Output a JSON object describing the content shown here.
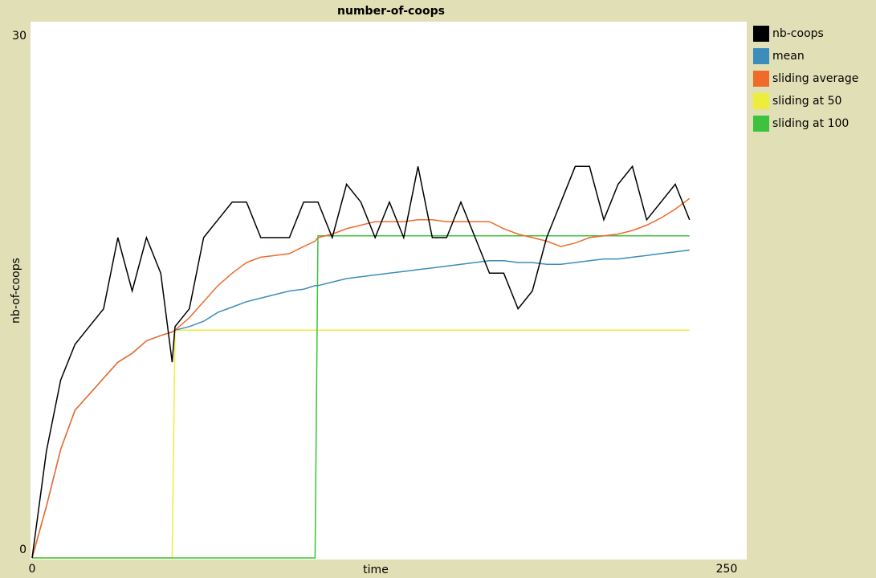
{
  "chart_data": {
    "type": "line",
    "title": "number-of-coops",
    "x_label": "time",
    "y_label": "nb-of-coops",
    "xlim": [
      0,
      250
    ],
    "ylim": [
      0,
      30
    ],
    "xticks": [
      0,
      250
    ],
    "yticks": [
      0,
      30
    ],
    "grid": false,
    "legend": "outside-right",
    "x": [
      0,
      5,
      10,
      15,
      20,
      25,
      30,
      35,
      40,
      45,
      49,
      50,
      55,
      60,
      65,
      70,
      75,
      80,
      85,
      90,
      95,
      99,
      100,
      105,
      110,
      115,
      120,
      125,
      130,
      135,
      140,
      145,
      150,
      155,
      160,
      165,
      170,
      175,
      180,
      185,
      190,
      195,
      200,
      205,
      210,
      215,
      220,
      225,
      230
    ],
    "series": [
      {
        "name": "nb-coops",
        "color": "#000000",
        "values": [
          0,
          6,
          10,
          12,
          13,
          14,
          18,
          15,
          18,
          16,
          11,
          13,
          14,
          18,
          19,
          20,
          20,
          18,
          18,
          18,
          20,
          20,
          20,
          18,
          21,
          20,
          18,
          20,
          18,
          22,
          18,
          18,
          20,
          18,
          16,
          16,
          14,
          15,
          18,
          20,
          22,
          22,
          19,
          21,
          22,
          19,
          20,
          21,
          19
        ]
      },
      {
        "name": "mean",
        "color": "#3c8dbc",
        "values": [
          0,
          2.9,
          6.1,
          8.3,
          9.2,
          10.1,
          11,
          11.5,
          12.2,
          12.5,
          12.7,
          12.8,
          13.0,
          13.3,
          13.8,
          14.1,
          14.4,
          14.6,
          14.8,
          15,
          15.1,
          15.3,
          15.3,
          15.5,
          15.7,
          15.8,
          15.9,
          16.0,
          16.1,
          16.2,
          16.3,
          16.4,
          16.5,
          16.6,
          16.7,
          16.7,
          16.6,
          16.6,
          16.5,
          16.5,
          16.6,
          16.7,
          16.8,
          16.8,
          16.9,
          17.0,
          17.1,
          17.2,
          17.3
        ]
      },
      {
        "name": "sliding average",
        "color": "#f06a2a",
        "values": [
          0,
          2.9,
          6.1,
          8.3,
          9.2,
          10.1,
          11,
          11.5,
          12.2,
          12.5,
          12.7,
          12.8,
          13.5,
          14.4,
          15.3,
          16,
          16.6,
          16.9,
          17,
          17.1,
          17.5,
          17.8,
          18,
          18.2,
          18.5,
          18.7,
          18.9,
          18.9,
          18.9,
          19,
          19,
          18.9,
          18.9,
          18.9,
          18.9,
          18.5,
          18.2,
          18,
          17.8,
          17.5,
          17.7,
          18,
          18.1,
          18.2,
          18.4,
          18.7,
          19.1,
          19.6,
          20.2
        ]
      },
      {
        "name": "sliding at 50",
        "color": "#eeee3a",
        "values": [
          0,
          0,
          0,
          0,
          0,
          0,
          0,
          0,
          0,
          0,
          0,
          12.8,
          12.8,
          12.8,
          12.8,
          12.8,
          12.8,
          12.8,
          12.8,
          12.8,
          12.8,
          12.8,
          12.8,
          12.8,
          12.8,
          12.8,
          12.8,
          12.8,
          12.8,
          12.8,
          12.8,
          12.8,
          12.8,
          12.8,
          12.8,
          12.8,
          12.8,
          12.8,
          12.8,
          12.8,
          12.8,
          12.8,
          12.8,
          12.8,
          12.8,
          12.8,
          12.8,
          12.8,
          12.8
        ]
      },
      {
        "name": "sliding at 100",
        "color": "#3cc23c",
        "values": [
          0,
          0,
          0,
          0,
          0,
          0,
          0,
          0,
          0,
          0,
          0,
          0,
          0,
          0,
          0,
          0,
          0,
          0,
          0,
          0,
          0,
          0,
          18.1,
          18.1,
          18.1,
          18.1,
          18.1,
          18.1,
          18.1,
          18.1,
          18.1,
          18.1,
          18.1,
          18.1,
          18.1,
          18.1,
          18.1,
          18.1,
          18.1,
          18.1,
          18.1,
          18.1,
          18.1,
          18.1,
          18.1,
          18.1,
          18.1,
          18.1,
          18.1
        ]
      }
    ]
  }
}
